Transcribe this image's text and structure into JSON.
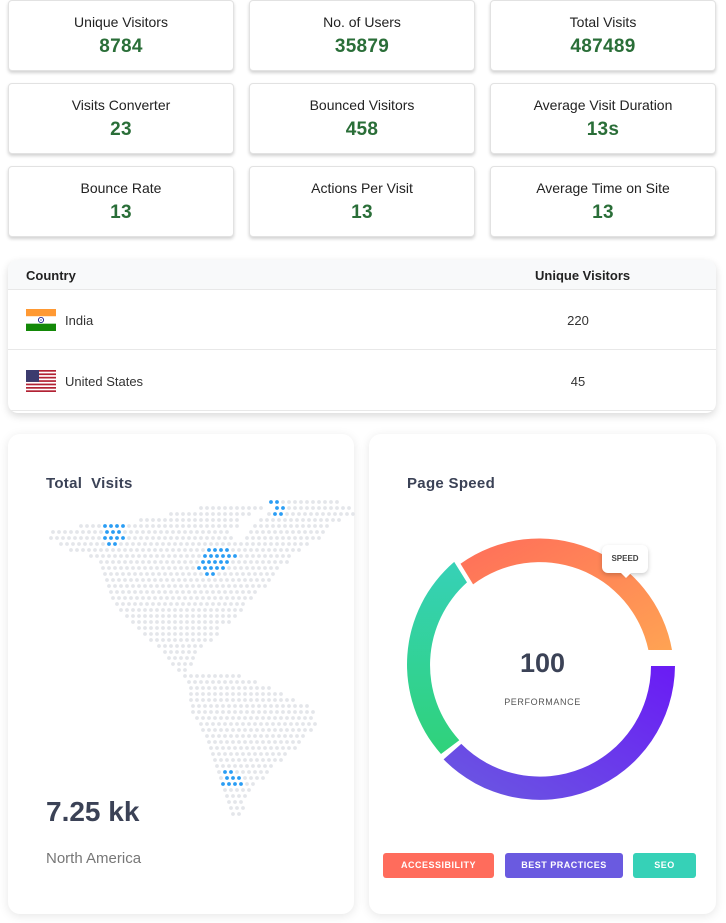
{
  "stats": [
    {
      "label": "Unique Visitors",
      "value": "8784"
    },
    {
      "label": "No. of Users",
      "value": "35879"
    },
    {
      "label": "Total Visits",
      "value": "487489"
    },
    {
      "label": "Visits Converter",
      "value": "23"
    },
    {
      "label": "Bounced Visitors",
      "value": "458"
    },
    {
      "label": "Average Visit Duration",
      "value": "13s"
    },
    {
      "label": "Bounce Rate",
      "value": "13"
    },
    {
      "label": "Actions Per Visit",
      "value": "13"
    },
    {
      "label": "Average Time on Site",
      "value": "13"
    }
  ],
  "country_table": {
    "headers": [
      "Country",
      "Unique Visitors"
    ],
    "rows": [
      {
        "country": "India",
        "visitors": "220",
        "flag": "india-flag"
      },
      {
        "country": "United States",
        "visitors": "45",
        "flag": "us-flag"
      }
    ]
  },
  "total_visits": {
    "title": "Total  Visits",
    "value": "7.25 kk",
    "region": "North America",
    "map": "americas-dot-map"
  },
  "page_speed": {
    "title": "Page Speed",
    "value": "100",
    "label": "PERFORMANCE",
    "tooltip": "SPEED",
    "segments": [
      {
        "name": "SPEED",
        "share": 0.25,
        "color_from": "#ff6d5a",
        "color_to": "#ffa353"
      },
      {
        "name": "BEST PRACTICES",
        "share": 0.35,
        "color_from": "#6a1bf5",
        "color_to": "#6a5ae0"
      },
      {
        "name": "SEO",
        "share": 0.25,
        "color_from": "#36d1b7",
        "color_to": "#2fd27a"
      }
    ],
    "legend": [
      {
        "label": "ACCESSIBILITY",
        "color": "#ff6c5c"
      },
      {
        "label": "BEST PRACTICES",
        "color": "#6a5ae0"
      },
      {
        "label": "SEO",
        "color": "#36d1b7"
      }
    ]
  }
}
